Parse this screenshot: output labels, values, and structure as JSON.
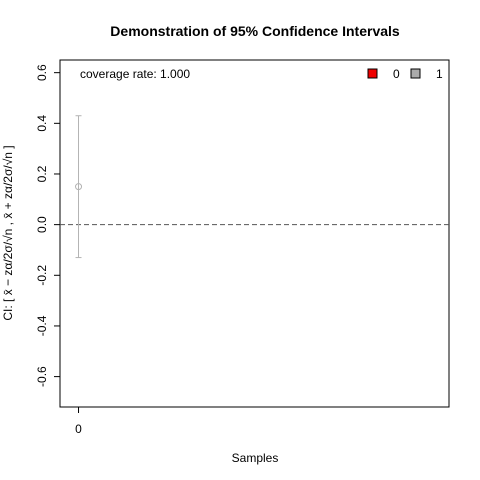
{
  "chart_data": {
    "type": "scatter",
    "title": "Demonstration of 95% Confidence Intervals",
    "xlabel": "Samples",
    "ylabel": "CI: [ x̄ − zα/2σ/√n , x̄ + zα/2σ/√n ]",
    "xlim": [
      -0.05,
      1.0
    ],
    "ylim": [
      -0.72,
      0.65
    ],
    "x_ticks": [
      0
    ],
    "x_tick_labels": [
      "0"
    ],
    "y_ticks": [
      -0.6,
      -0.4,
      -0.2,
      0.0,
      0.2,
      0.4,
      0.6
    ],
    "y_tick_labels": [
      "-0.6",
      "-0.4",
      "-0.2",
      "0.0",
      "0.2",
      "0.4",
      "0.6"
    ],
    "reference_line": {
      "y": 0.0,
      "style": "dashed"
    },
    "annotation": "coverage rate: 1.000",
    "legend": {
      "placement": "top-right",
      "entries": [
        {
          "label": "0",
          "color": "#ee0000"
        },
        {
          "label": "1",
          "color": "#aaaaaa"
        }
      ]
    },
    "series": [
      {
        "x": [
          0
        ],
        "estimate": [
          0.15
        ],
        "lower": [
          -0.13
        ],
        "upper": [
          0.43
        ],
        "covers": [
          1
        ],
        "color": "#b3b3b3"
      }
    ]
  }
}
